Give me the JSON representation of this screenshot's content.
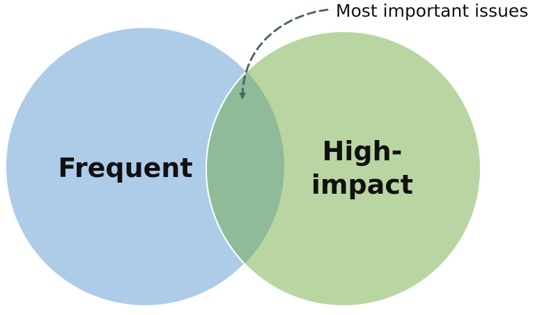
{
  "diagram": {
    "type": "venn",
    "colors": {
      "left_fill": "#aecce8",
      "right_fill": "#b9d6a2",
      "overlap_fill": "#8fbb99",
      "outline": "#ffffff",
      "callout_line": "#4d6470",
      "label_text": "#111111"
    },
    "sets": [
      {
        "id": "frequent",
        "label": "Frequent"
      },
      {
        "id": "high-impact",
        "label_line1": "High-",
        "label_line2": "impact"
      }
    ],
    "callout": {
      "text": "Most important issues",
      "points_to": "intersection"
    }
  }
}
